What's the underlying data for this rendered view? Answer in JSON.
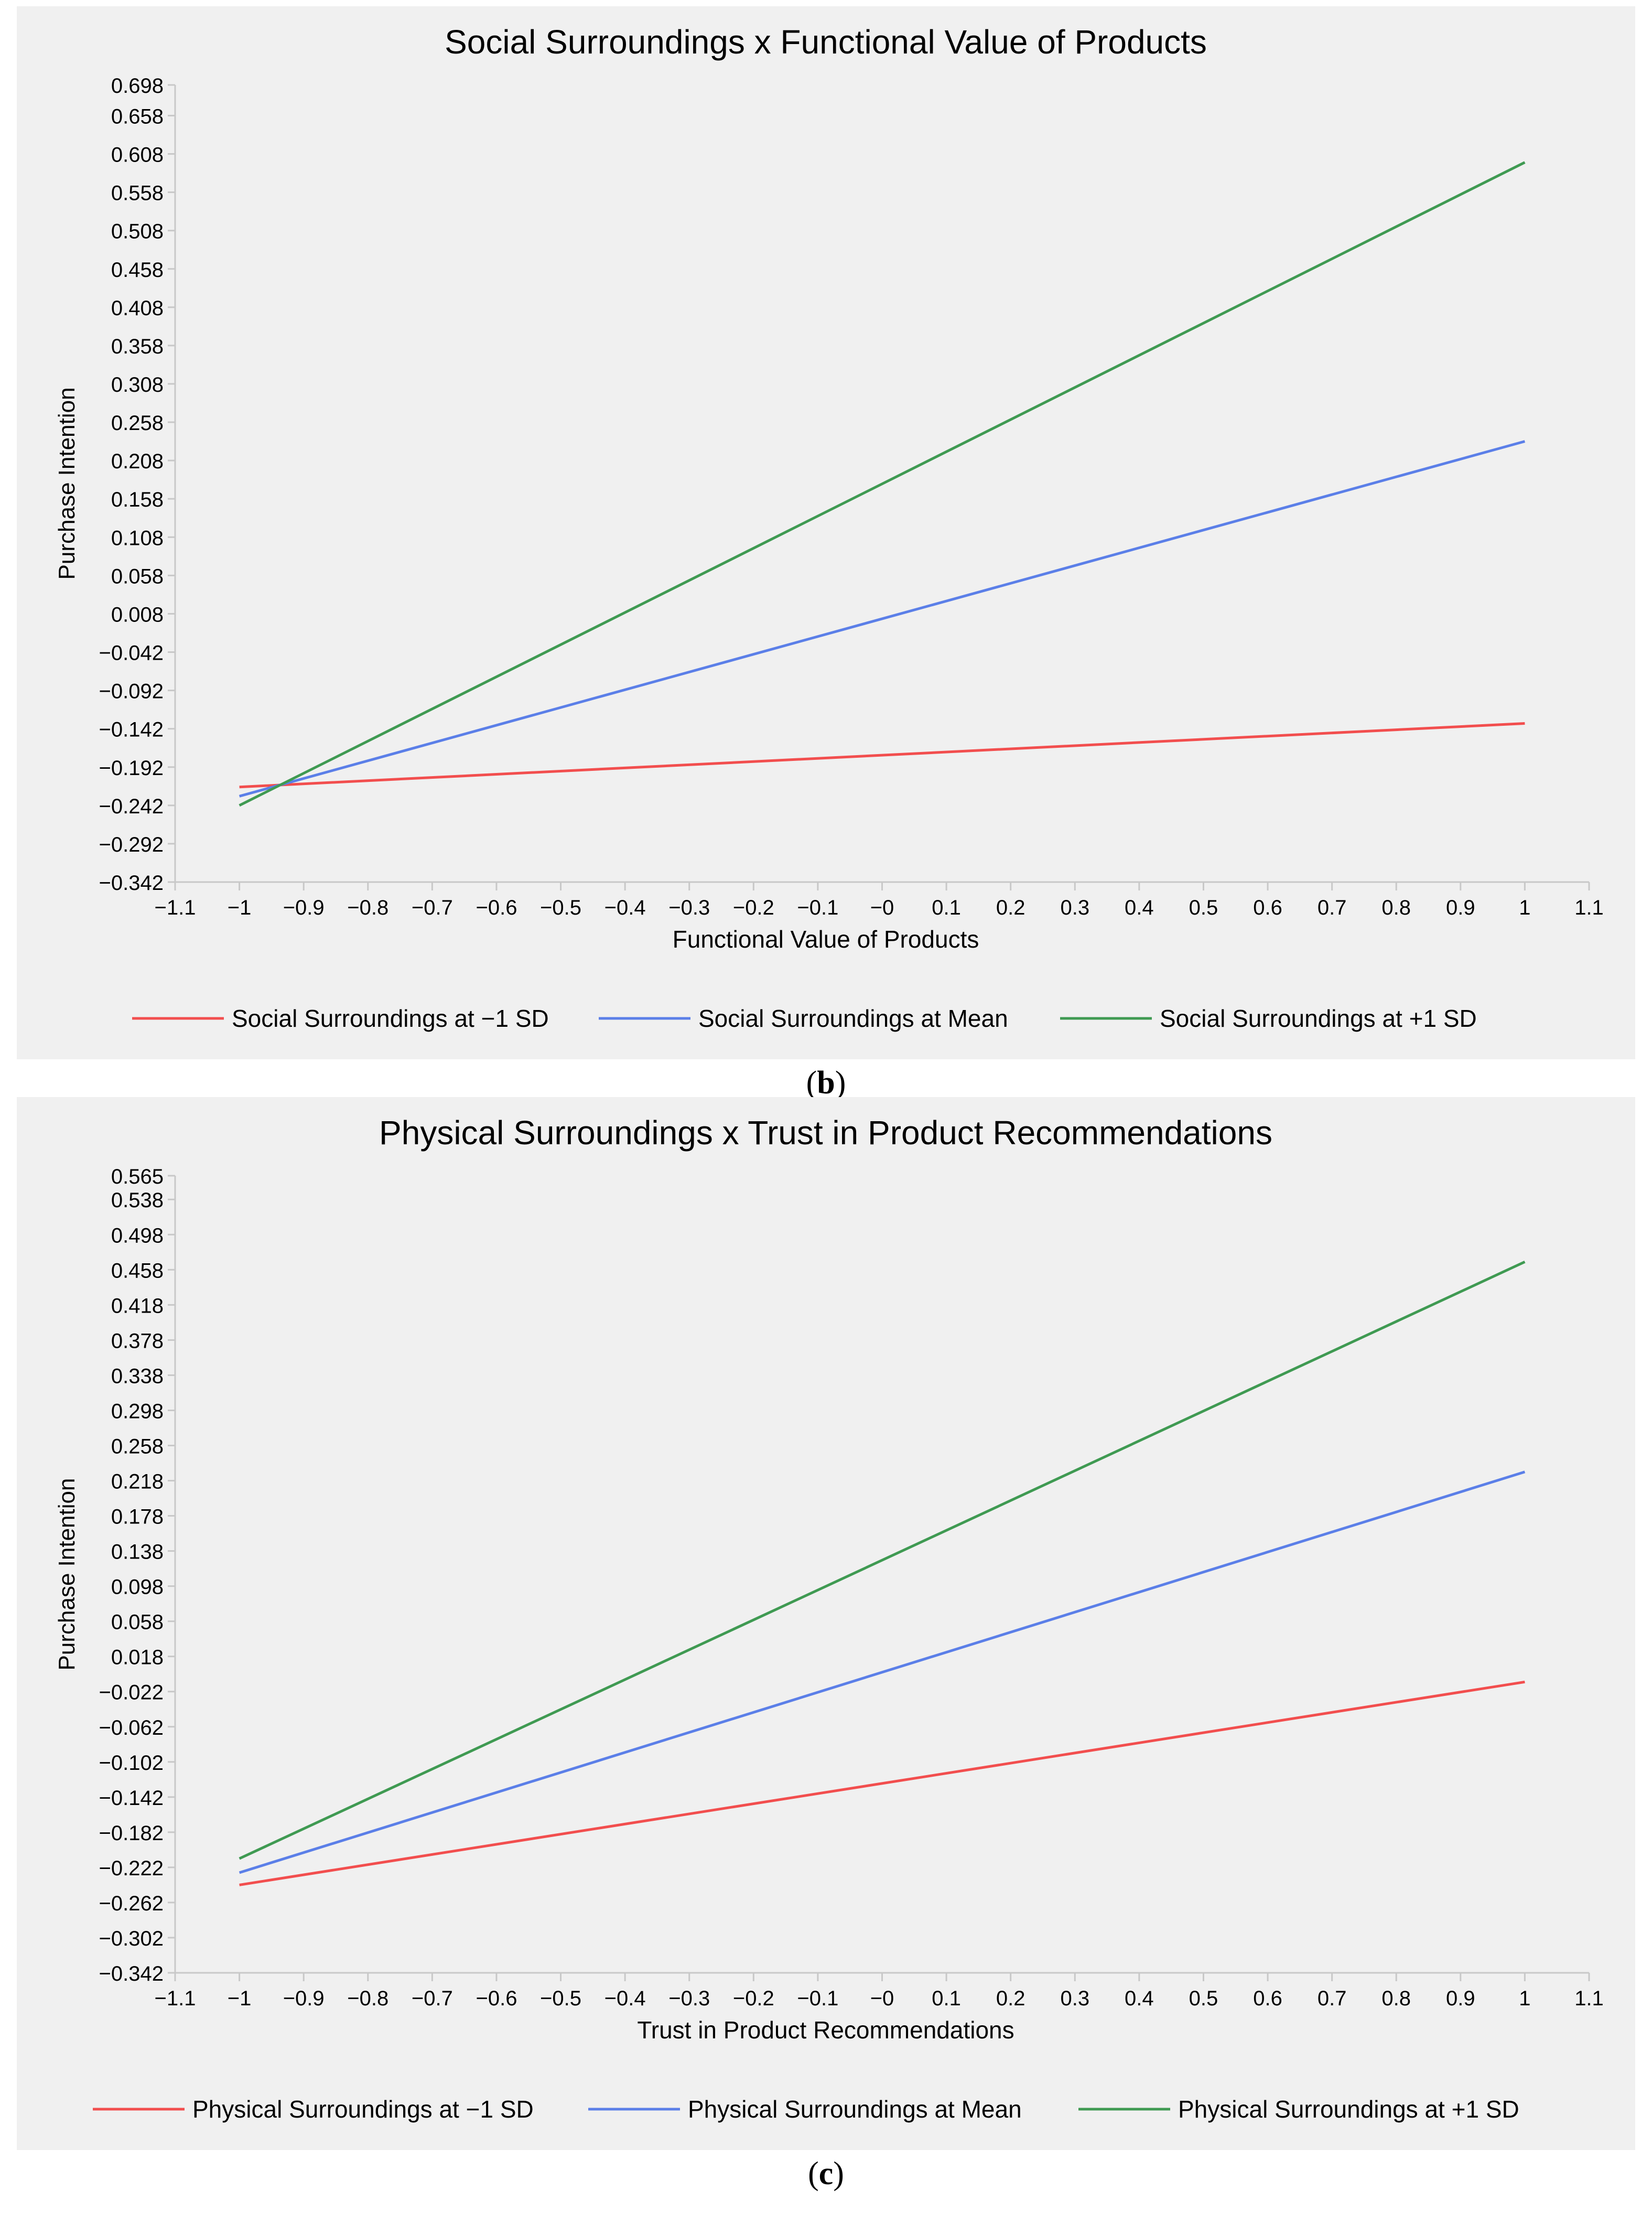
{
  "captions": {
    "b_open": "(",
    "b_letter": "b",
    "b_close": ")",
    "c_open": "(",
    "c_letter": "c",
    "c_close": ")"
  },
  "chart_data": [
    {
      "type": "line",
      "title": "Social Surroundings x Functional Value of Products",
      "xlabel": "Functional Value of Products",
      "ylabel": "Purchase Intention",
      "xlim": [
        -1.1,
        1.1
      ],
      "ylim": [
        -0.342,
        0.698
      ],
      "xticks": [
        "−1.1",
        "−1",
        "−0.9",
        "−0.8",
        "−0.7",
        "−0.6",
        "−0.5",
        "−0.4",
        "−0.3",
        "−0.2",
        "−0.1",
        "−0",
        "0.1",
        "0.2",
        "0.3",
        "0.4",
        "0.5",
        "0.6",
        "0.7",
        "0.8",
        "0.9",
        "1",
        "1.1"
      ],
      "xtick_values": [
        -1.1,
        -1,
        -0.9,
        -0.8,
        -0.7,
        -0.6,
        -0.5,
        -0.4,
        -0.3,
        -0.2,
        -0.1,
        0,
        0.1,
        0.2,
        0.3,
        0.4,
        0.5,
        0.6,
        0.7,
        0.8,
        0.9,
        1,
        1.1
      ],
      "yticks": [
        "0.698",
        "0.658",
        "0.608",
        "0.558",
        "0.508",
        "0.458",
        "0.408",
        "0.358",
        "0.308",
        "0.258",
        "0.208",
        "0.158",
        "0.108",
        "0.058",
        "0.008",
        "−0.042",
        "−0.092",
        "−0.142",
        "−0.192",
        "−0.242",
        "−0.292",
        "−0.342"
      ],
      "ytick_values": [
        0.698,
        0.658,
        0.608,
        0.558,
        0.508,
        0.458,
        0.408,
        0.358,
        0.308,
        0.258,
        0.208,
        0.158,
        0.108,
        0.058,
        0.008,
        -0.042,
        -0.092,
        -0.142,
        -0.192,
        -0.242,
        -0.292,
        -0.342
      ],
      "series": [
        {
          "name": "Social Surroundings at −1 SD",
          "color": "#f24e4e",
          "x": [
            -1,
            1
          ],
          "y": [
            -0.218,
            -0.135
          ]
        },
        {
          "name": "Social Surroundings at Mean",
          "color": "#5b7fe8",
          "x": [
            -1,
            1
          ],
          "y": [
            -0.23,
            0.233
          ]
        },
        {
          "name": "Social Surroundings at +1 SD",
          "color": "#3f9a52",
          "x": [
            -1,
            1
          ],
          "y": [
            -0.242,
            0.597
          ]
        }
      ],
      "legend": "bottom"
    },
    {
      "type": "line",
      "title": "Physical Surroundings x Trust in Product Recommendations",
      "xlabel": "Trust in Product Recommendations",
      "ylabel": "Purchase Intention",
      "xlim": [
        -1.1,
        1.1
      ],
      "ylim": [
        -0.342,
        0.565
      ],
      "xticks": [
        "−1.1",
        "−1",
        "−0.9",
        "−0.8",
        "−0.7",
        "−0.6",
        "−0.5",
        "−0.4",
        "−0.3",
        "−0.2",
        "−0.1",
        "−0",
        "0.1",
        "0.2",
        "0.3",
        "0.4",
        "0.5",
        "0.6",
        "0.7",
        "0.8",
        "0.9",
        "1",
        "1.1"
      ],
      "xtick_values": [
        -1.1,
        -1,
        -0.9,
        -0.8,
        -0.7,
        -0.6,
        -0.5,
        -0.4,
        -0.3,
        -0.2,
        -0.1,
        0,
        0.1,
        0.2,
        0.3,
        0.4,
        0.5,
        0.6,
        0.7,
        0.8,
        0.9,
        1,
        1.1
      ],
      "yticks": [
        "0.565",
        "0.538",
        "0.498",
        "0.458",
        "0.418",
        "0.378",
        "0.338",
        "0.298",
        "0.258",
        "0.218",
        "0.178",
        "0.138",
        "0.098",
        "0.058",
        "0.018",
        "−0.022",
        "−0.062",
        "−0.102",
        "−0.142",
        "−0.182",
        "−0.222",
        "−0.262",
        "−0.302",
        "−0.342"
      ],
      "ytick_values": [
        0.565,
        0.538,
        0.498,
        0.458,
        0.418,
        0.378,
        0.338,
        0.298,
        0.258,
        0.218,
        0.178,
        0.138,
        0.098,
        0.058,
        0.018,
        -0.022,
        -0.062,
        -0.102,
        -0.142,
        -0.182,
        -0.222,
        -0.262,
        -0.302,
        -0.342
      ],
      "series": [
        {
          "name": "Physical Surroundings at −1 SD",
          "color": "#f24e4e",
          "x": [
            -1,
            1
          ],
          "y": [
            -0.242,
            -0.011
          ]
        },
        {
          "name": "Physical Surroundings at Mean",
          "color": "#5b7fe8",
          "x": [
            -1,
            1
          ],
          "y": [
            -0.228,
            0.228
          ]
        },
        {
          "name": "Physical Surroundings at +1 SD",
          "color": "#3f9a52",
          "x": [
            -1,
            1
          ],
          "y": [
            -0.212,
            0.467
          ]
        }
      ],
      "legend": "bottom"
    }
  ]
}
